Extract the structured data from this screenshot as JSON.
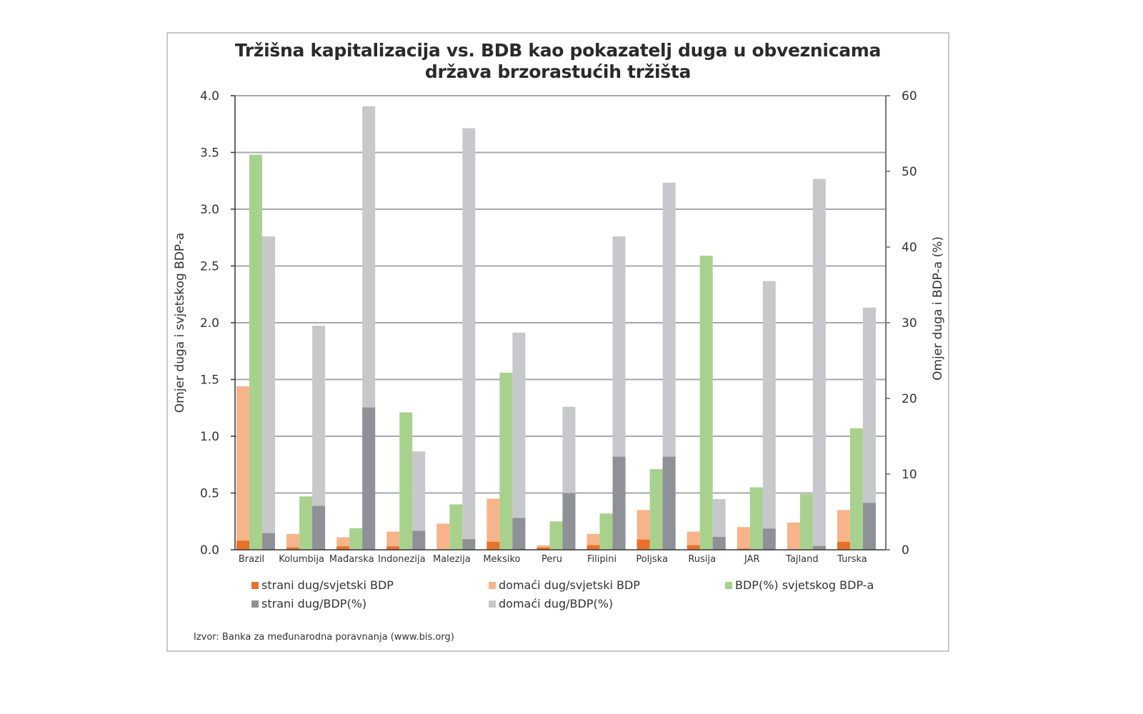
{
  "chart_data": {
    "type": "bar",
    "title": "Tržišna kapitalizacija vs. BDB kao pokazatelj duga u obveznicama",
    "title_line2": "država brzorastućih tržišta",
    "ylabel": "Omjer duga i svjetskog BDP-a",
    "y2label": "Omjer duga i BDP-a (%)",
    "ylim": [
      0,
      4.0
    ],
    "y2lim": [
      0,
      60
    ],
    "yticks": [
      "0.0",
      "0.5",
      "1.0",
      "1.5",
      "2.0",
      "2.5",
      "3.0",
      "3.5",
      "4.0"
    ],
    "y2ticks": [
      "0",
      "10",
      "20",
      "30",
      "40",
      "50",
      "60"
    ],
    "grid": true,
    "legend_position": "bottom",
    "categories": [
      "Brazil",
      "Kolumbija",
      "Mađarska",
      "Indonezija",
      "Malezija",
      "Meksiko",
      "Peru",
      "Filipini",
      "Poljska",
      "Rusija",
      "JAR",
      "Tajland",
      "Turska"
    ],
    "series": [
      {
        "name": "strani dug/svjetski BDP",
        "axis": "left",
        "stack": "A",
        "color": "#e8712a",
        "values": [
          0.08,
          0.02,
          0.03,
          0.03,
          0.0,
          0.07,
          0.02,
          0.04,
          0.09,
          0.04,
          0.01,
          0.0,
          0.07
        ]
      },
      {
        "name": "domaći dug/svjetski BDP",
        "axis": "left",
        "stack": "A",
        "color": "#f7b48a",
        "values": [
          1.36,
          0.12,
          0.08,
          0.13,
          0.23,
          0.38,
          0.02,
          0.1,
          0.26,
          0.12,
          0.19,
          0.24,
          0.28
        ]
      },
      {
        "name": "BDP(%) svjetskog BDP-a",
        "axis": "left",
        "stack": "B",
        "color": "#a9d18e",
        "values": [
          3.48,
          0.47,
          0.19,
          1.21,
          0.4,
          1.56,
          0.25,
          0.32,
          0.71,
          2.59,
          0.55,
          0.49,
          1.07
        ]
      },
      {
        "name": "strani dug/BDP(%)",
        "axis": "right",
        "stack": "C",
        "color": "#8e9196",
        "values": [
          2.2,
          5.8,
          18.8,
          2.5,
          1.4,
          4.2,
          7.5,
          12.3,
          12.3,
          1.7,
          2.8,
          0.5,
          6.2
        ]
      },
      {
        "name": "domaći dug/BDP(%)",
        "axis": "right",
        "stack": "C",
        "color": "#c7c8cb",
        "values": [
          39.2,
          23.8,
          39.8,
          10.5,
          54.3,
          24.5,
          11.4,
          29.1,
          36.2,
          5.0,
          32.7,
          48.5,
          25.8
        ]
      }
    ],
    "source": "Izvor: Banka za međunarodna poravnanja (www.bis.org)"
  }
}
